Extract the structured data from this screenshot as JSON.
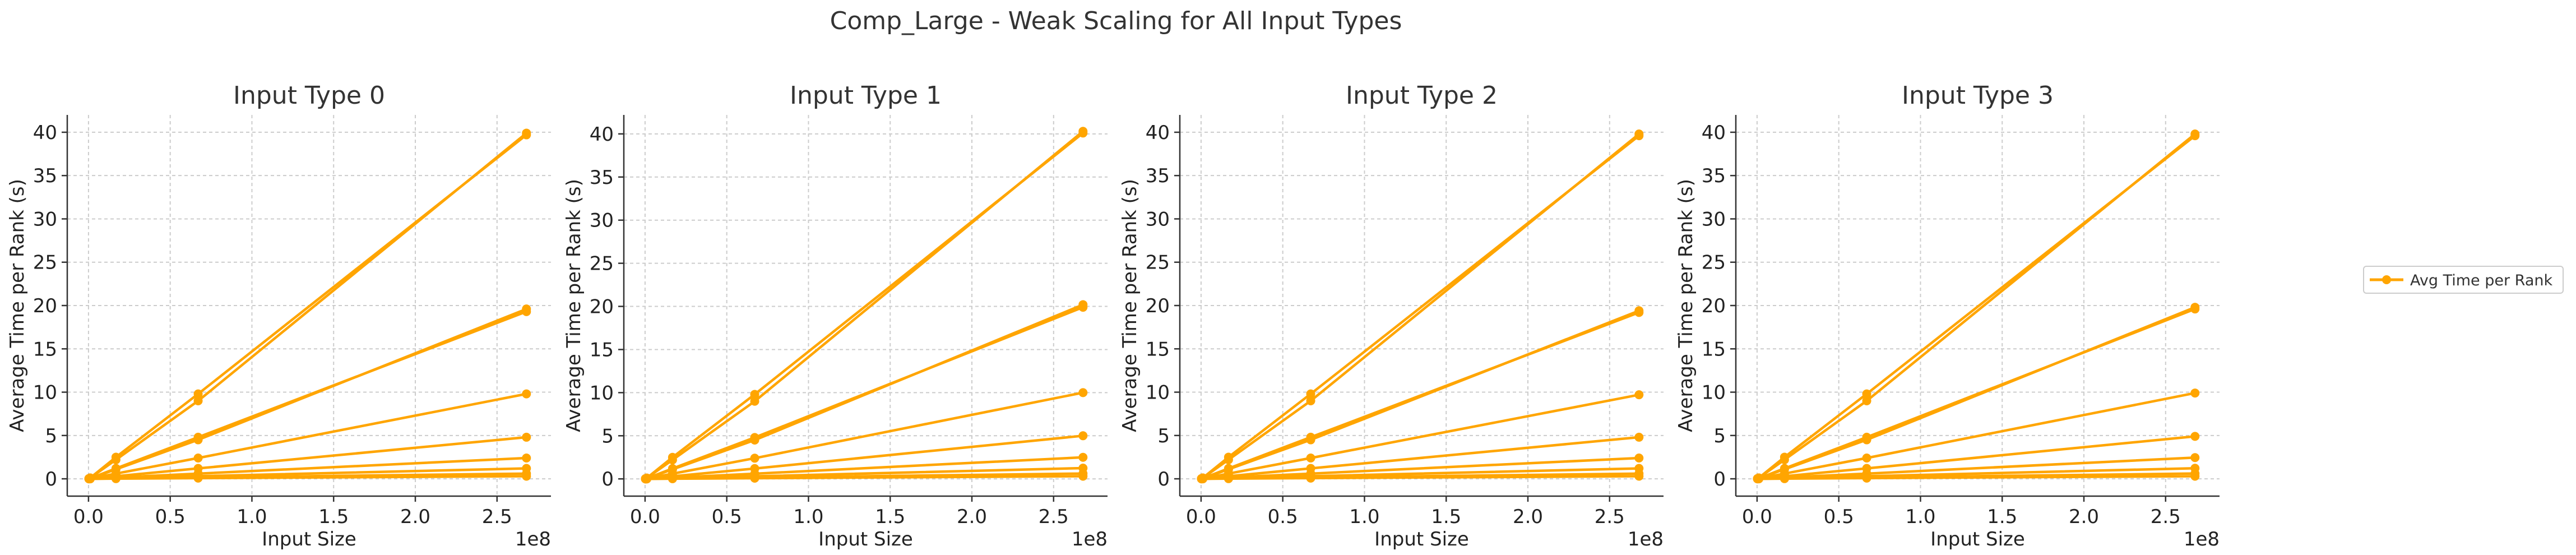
{
  "figure": {
    "suptitle": "Comp_Large - Weak Scaling for All Input Types",
    "legend_label": "Avg Time per Rank",
    "legend_placement": "right"
  },
  "colors": {
    "series": "#ffa500",
    "grid": "#cccccc",
    "axis": "#333333"
  },
  "chart_data": [
    {
      "type": "line",
      "title": "Input Type 0",
      "xlabel": "Input Size",
      "ylabel": "Average Time per Rank (s)",
      "x_offset_label": "1e8",
      "xlim": [
        -0.13,
        2.83
      ],
      "ylim": [
        -2.0,
        42.0
      ],
      "xticks": [
        0.0,
        0.5,
        1.0,
        1.5,
        2.0,
        2.5
      ],
      "xtick_labels": [
        "0.0",
        "0.5",
        "1.0",
        "1.5",
        "2.0",
        "2.5"
      ],
      "yticks": [
        0,
        5,
        10,
        15,
        20,
        25,
        30,
        35,
        40
      ],
      "grid": true,
      "x": [
        0.0026,
        0.0105,
        0.168,
        0.671,
        2.68
      ],
      "series": [
        {
          "values": [
            0.02,
            0.04,
            1.1,
            4.5,
            19.6
          ]
        },
        {
          "values": [
            0.03,
            0.1,
            2.2,
            9.0,
            39.9
          ]
        },
        {
          "values": [
            0.03,
            0.1,
            2.5,
            9.8,
            39.7
          ]
        },
        {
          "values": [
            0.02,
            0.05,
            1.2,
            4.8,
            19.3
          ]
        },
        {
          "values": [
            0.01,
            0.03,
            0.6,
            2.4,
            9.8
          ]
        },
        {
          "values": [
            0.01,
            0.02,
            0.3,
            1.2,
            4.8
          ]
        },
        {
          "values": [
            0.0,
            0.01,
            0.15,
            0.6,
            2.4
          ]
        },
        {
          "values": [
            0.0,
            0.01,
            0.08,
            0.3,
            1.2
          ]
        },
        {
          "values": [
            0.0,
            0.0,
            0.04,
            0.15,
            0.6
          ]
        },
        {
          "values": [
            0.0,
            0.0,
            0.02,
            0.08,
            0.3
          ]
        }
      ]
    },
    {
      "type": "line",
      "title": "Input Type 1",
      "xlabel": "Input Size",
      "ylabel": "Average Time per Rank (s)",
      "x_offset_label": "1e8",
      "xlim": [
        -0.13,
        2.83
      ],
      "ylim": [
        -2.0,
        42.2
      ],
      "xticks": [
        0.0,
        0.5,
        1.0,
        1.5,
        2.0,
        2.5
      ],
      "xtick_labels": [
        "0.0",
        "0.5",
        "1.0",
        "1.5",
        "2.0",
        "2.5"
      ],
      "yticks": [
        0,
        5,
        10,
        15,
        20,
        25,
        30,
        35,
        40
      ],
      "grid": true,
      "x": [
        0.0026,
        0.0105,
        0.168,
        0.671,
        2.68
      ],
      "series": [
        {
          "values": [
            0.02,
            0.04,
            1.1,
            4.5,
            20.2
          ]
        },
        {
          "values": [
            0.03,
            0.1,
            2.2,
            9.0,
            40.3
          ]
        },
        {
          "values": [
            0.03,
            0.1,
            2.5,
            9.8,
            40.1
          ]
        },
        {
          "values": [
            0.02,
            0.05,
            1.2,
            4.8,
            19.9
          ]
        },
        {
          "values": [
            0.01,
            0.03,
            0.6,
            2.4,
            10.0
          ]
        },
        {
          "values": [
            0.01,
            0.02,
            0.3,
            1.2,
            5.0
          ]
        },
        {
          "values": [
            0.0,
            0.01,
            0.15,
            0.6,
            2.5
          ]
        },
        {
          "values": [
            0.0,
            0.01,
            0.08,
            0.3,
            1.25
          ]
        },
        {
          "values": [
            0.0,
            0.0,
            0.04,
            0.15,
            0.62
          ]
        },
        {
          "values": [
            0.0,
            0.0,
            0.02,
            0.08,
            0.31
          ]
        }
      ]
    },
    {
      "type": "line",
      "title": "Input Type 2",
      "xlabel": "Input Size",
      "ylabel": "Average Time per Rank (s)",
      "x_offset_label": "1e8",
      "xlim": [
        -0.13,
        2.83
      ],
      "ylim": [
        -2.0,
        42.0
      ],
      "xticks": [
        0.0,
        0.5,
        1.0,
        1.5,
        2.0,
        2.5
      ],
      "xtick_labels": [
        "0.0",
        "0.5",
        "1.0",
        "1.5",
        "2.0",
        "2.5"
      ],
      "yticks": [
        0,
        5,
        10,
        15,
        20,
        25,
        30,
        35,
        40
      ],
      "grid": true,
      "x": [
        0.0026,
        0.0105,
        0.168,
        0.671,
        2.68
      ],
      "series": [
        {
          "values": [
            0.02,
            0.04,
            1.1,
            4.5,
            19.4
          ]
        },
        {
          "values": [
            0.03,
            0.1,
            2.2,
            9.0,
            39.8
          ]
        },
        {
          "values": [
            0.03,
            0.1,
            2.5,
            9.8,
            39.6
          ]
        },
        {
          "values": [
            0.02,
            0.05,
            1.2,
            4.8,
            19.2
          ]
        },
        {
          "values": [
            0.01,
            0.03,
            0.6,
            2.4,
            9.7
          ]
        },
        {
          "values": [
            0.01,
            0.02,
            0.3,
            1.2,
            4.8
          ]
        },
        {
          "values": [
            0.0,
            0.01,
            0.15,
            0.6,
            2.4
          ]
        },
        {
          "values": [
            0.0,
            0.01,
            0.08,
            0.3,
            1.2
          ]
        },
        {
          "values": [
            0.0,
            0.0,
            0.04,
            0.15,
            0.6
          ]
        },
        {
          "values": [
            0.0,
            0.0,
            0.02,
            0.08,
            0.3
          ]
        }
      ]
    },
    {
      "type": "line",
      "title": "Input Type 3",
      "xlabel": "Input Size",
      "ylabel": "Average Time per Rank (s)",
      "x_offset_label": "1e8",
      "xlim": [
        -0.13,
        2.83
      ],
      "ylim": [
        -2.0,
        42.0
      ],
      "xticks": [
        0.0,
        0.5,
        1.0,
        1.5,
        2.0,
        2.5
      ],
      "xtick_labels": [
        "0.0",
        "0.5",
        "1.0",
        "1.5",
        "2.0",
        "2.5"
      ],
      "yticks": [
        0,
        5,
        10,
        15,
        20,
        25,
        30,
        35,
        40
      ],
      "grid": true,
      "x": [
        0.0026,
        0.0105,
        0.168,
        0.671,
        2.68
      ],
      "series": [
        {
          "values": [
            0.02,
            0.04,
            1.1,
            4.5,
            19.8
          ]
        },
        {
          "values": [
            0.03,
            0.1,
            2.2,
            9.0,
            39.8
          ]
        },
        {
          "values": [
            0.03,
            0.1,
            2.5,
            9.8,
            39.6
          ]
        },
        {
          "values": [
            0.02,
            0.05,
            1.2,
            4.8,
            19.6
          ]
        },
        {
          "values": [
            0.01,
            0.03,
            0.6,
            2.4,
            9.9
          ]
        },
        {
          "values": [
            0.01,
            0.02,
            0.3,
            1.2,
            4.9
          ]
        },
        {
          "values": [
            0.0,
            0.01,
            0.15,
            0.6,
            2.45
          ]
        },
        {
          "values": [
            0.0,
            0.01,
            0.08,
            0.3,
            1.22
          ]
        },
        {
          "values": [
            0.0,
            0.0,
            0.04,
            0.15,
            0.61
          ]
        },
        {
          "values": [
            0.0,
            0.0,
            0.02,
            0.08,
            0.3
          ]
        }
      ]
    }
  ]
}
